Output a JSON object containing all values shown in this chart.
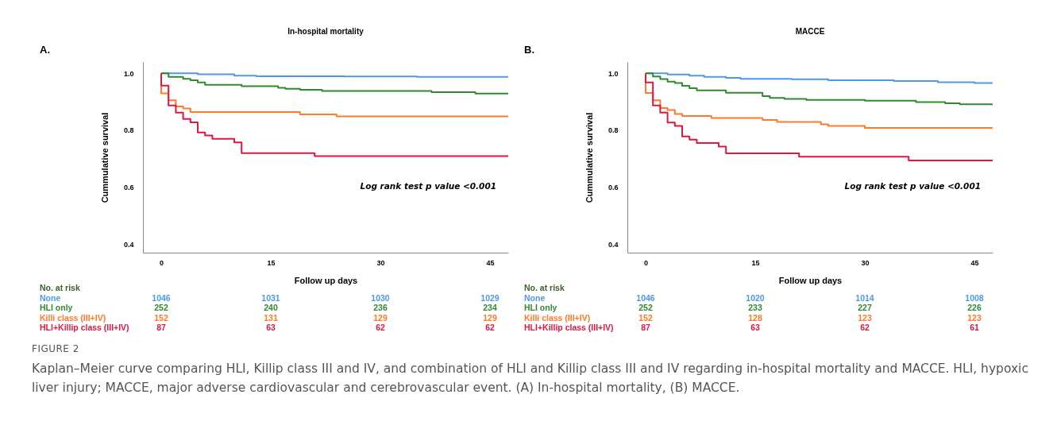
{
  "chart_data": [
    {
      "type": "step",
      "title": "In-hospital mortality",
      "xlabel": "Follow up days",
      "ylabel": "Cummulative survival",
      "xlim": [
        -2.5,
        47.5
      ],
      "xticks": [
        0,
        15,
        30,
        45
      ],
      "ylim": [
        0.37,
        1.04
      ],
      "yticks": [
        0.4,
        0.6,
        0.8,
        {
          "value": 1,
          "label": "1.0"
        }
      ],
      "grid": false,
      "legend": false,
      "series": [
        {
          "name": "None",
          "color": "#4f98ea",
          "x": [
            0,
            5,
            10,
            13,
            25,
            35,
            47.5
          ],
          "values": [
            1.0,
            0.997,
            0.992,
            0.99,
            0.989,
            0.988,
            0.987
          ]
        },
        {
          "name": "HLI only",
          "color": "#2e8b2e",
          "x": [
            0,
            1,
            3,
            4,
            5,
            6,
            11,
            16,
            17,
            19,
            22,
            37,
            43,
            47.5
          ],
          "values": [
            1.0,
            0.988,
            0.981,
            0.976,
            0.968,
            0.96,
            0.955,
            0.949,
            0.946,
            0.942,
            0.938,
            0.934,
            0.929,
            0.929
          ]
        },
        {
          "name": "Killi class (III+IV)",
          "color": "#ff7a2a",
          "x": [
            0,
            0,
            1,
            2,
            3,
            4,
            19,
            24,
            47.5
          ],
          "values": [
            1.0,
            0.93,
            0.905,
            0.884,
            0.877,
            0.864,
            0.856,
            0.849,
            0.849
          ]
        },
        {
          "name": "HLI+Killip class (III+IV)",
          "color": "#e0173f",
          "x": [
            0,
            0,
            1,
            2,
            3,
            4,
            5,
            6,
            7,
            10,
            11,
            21,
            47.5
          ],
          "values": [
            1.0,
            0.957,
            0.887,
            0.862,
            0.84,
            0.828,
            0.792,
            0.782,
            0.77,
            0.757,
            0.72,
            0.709,
            0.709
          ]
        }
      ],
      "annotations": [
        "A.",
        "Log rank test p value <0.001",
        "No. at risk",
        "1046",
        "1031",
        "1030",
        "1029",
        "252",
        "240",
        "236",
        "234",
        "152",
        "131",
        "129",
        "129",
        "87",
        "63",
        "62",
        "62"
      ]
    },
    {
      "type": "step",
      "title": "MACCE",
      "xlabel": "Follow up days",
      "ylabel": "Cummulative survival",
      "xlim": [
        -2.5,
        47.5
      ],
      "xticks": [
        0,
        15,
        30,
        45
      ],
      "ylim": [
        0.37,
        1.04
      ],
      "yticks": [
        0.4,
        0.6,
        0.8,
        {
          "value": 1,
          "label": "1.0"
        }
      ],
      "grid": false,
      "legend": false,
      "series": [
        {
          "name": "None",
          "color": "#4f98ea",
          "x": [
            0,
            3,
            6,
            8,
            11,
            13,
            20,
            25,
            34,
            40,
            45,
            47.5
          ],
          "values": [
            1.0,
            0.996,
            0.992,
            0.988,
            0.984,
            0.981,
            0.979,
            0.976,
            0.973,
            0.969,
            0.966,
            0.966
          ]
        },
        {
          "name": "HLI only",
          "color": "#2e8b2e",
          "x": [
            0,
            1,
            2,
            3,
            4,
            5,
            6,
            7,
            11,
            16,
            17,
            19,
            22,
            30,
            37,
            41,
            43,
            47.5
          ],
          "values": [
            1.0,
            0.989,
            0.98,
            0.971,
            0.966,
            0.956,
            0.948,
            0.94,
            0.932,
            0.92,
            0.914,
            0.91,
            0.907,
            0.904,
            0.899,
            0.895,
            0.891,
            0.891
          ]
        },
        {
          "name": "Killi class (III+IV)",
          "color": "#ff7a2a",
          "x": [
            0,
            0,
            1,
            2,
            3,
            4,
            5,
            9,
            16,
            18,
            24,
            25,
            30,
            47.5
          ],
          "values": [
            1.0,
            0.931,
            0.905,
            0.878,
            0.871,
            0.857,
            0.85,
            0.843,
            0.836,
            0.829,
            0.821,
            0.815,
            0.808,
            0.808
          ]
        },
        {
          "name": "HLI+Killip class (III+IV)",
          "color": "#e0173f",
          "x": [
            0,
            0,
            1,
            2,
            3,
            4,
            5,
            6,
            7,
            10,
            11,
            21,
            36,
            47.5
          ],
          "values": [
            1.0,
            0.968,
            0.887,
            0.862,
            0.827,
            0.815,
            0.778,
            0.767,
            0.755,
            0.743,
            0.719,
            0.707,
            0.694,
            0.694
          ]
        }
      ],
      "annotations": [
        "B.",
        "Log rank test p value <0.001",
        "No. at risk",
        "1046",
        "1020",
        "1014",
        "1008",
        "252",
        "233",
        "227",
        "226",
        "152",
        "128",
        "123",
        "123",
        "87",
        "63",
        "62",
        "61"
      ]
    },
    {
      "type": "other",
      "title": "FIGURE 2",
      "annotations": [
        "Kaplan–Meier curve comparing HLI, Killip class III and IV, and combination of HLI and Killip class III and IV regarding in-hospital mortality and MACCE. HLI, hypoxic liver injury; MACCE, major adverse cardiovascular and cerebrovascular event. (A) In-hospital mortality, (B) MACCE."
      ]
    }
  ]
}
